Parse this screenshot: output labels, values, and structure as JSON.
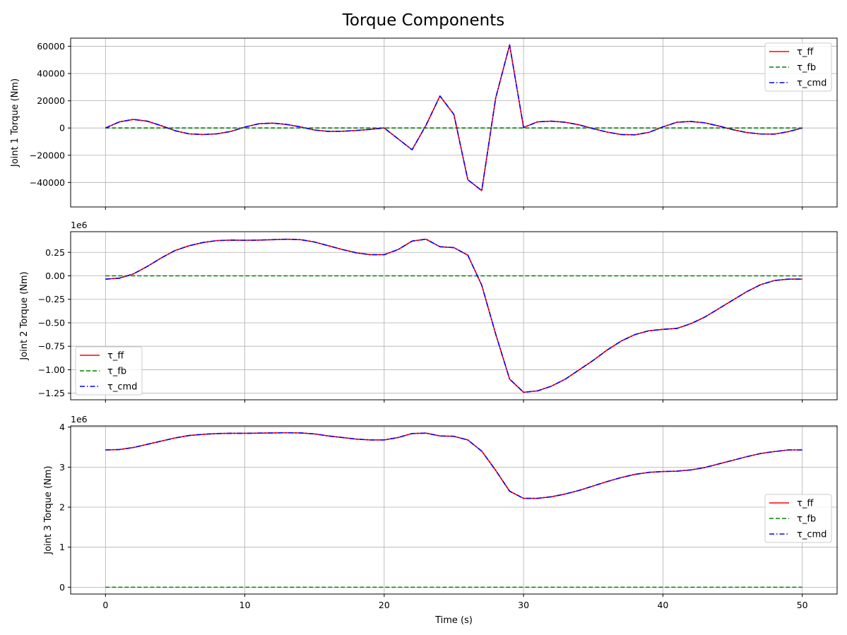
{
  "figure": {
    "title": "Torque Components"
  },
  "colors": {
    "tau_ff": "#ff0000",
    "tau_fb": "#008000",
    "tau_cmd": "#0000ff",
    "grid": "#b0b0b0"
  },
  "chart_data": [
    {
      "type": "line",
      "ylabel": "Joint 1 Torque (Nm)",
      "xlabel": "",
      "offset_text": "",
      "xlim": [
        -2.5,
        52.5
      ],
      "ylim": [
        -58000,
        66000
      ],
      "xticks": [
        0,
        10,
        20,
        30,
        40,
        50
      ],
      "yticks": [
        -40000,
        -20000,
        0,
        20000,
        40000,
        60000
      ],
      "ytick_labels": [
        "−40000",
        "−20000",
        "0",
        "20000",
        "40000",
        "60000"
      ],
      "grid": true,
      "legend_position": "upper right",
      "x": [
        0,
        1,
        2,
        3,
        4,
        5,
        6,
        7,
        8,
        9,
        10,
        11,
        12,
        13,
        14,
        15,
        16,
        17,
        18,
        19,
        20,
        21,
        22,
        23,
        24,
        25,
        26,
        27,
        28,
        29,
        30,
        31,
        32,
        33,
        34,
        35,
        36,
        37,
        38,
        39,
        40,
        41,
        42,
        43,
        44,
        45,
        46,
        47,
        48,
        49,
        50
      ],
      "series": [
        {
          "name": "τ_ff",
          "dash": "solid",
          "values": [
            0,
            4500,
            6300,
            5000,
            1700,
            -2000,
            -4300,
            -4800,
            -4300,
            -2500,
            700,
            3100,
            3600,
            2600,
            800,
            -1500,
            -2500,
            -2400,
            -1800,
            -1000,
            0,
            -8000,
            -16000,
            2000,
            23500,
            10000,
            -38000,
            -46000,
            22000,
            61000,
            400,
            4500,
            5000,
            4200,
            2300,
            -500,
            -3000,
            -4800,
            -5000,
            -3200,
            800,
            4200,
            4800,
            3800,
            1500,
            -1200,
            -3300,
            -4400,
            -4500,
            -2700,
            0
          ]
        },
        {
          "name": "τ_fb",
          "dash": "dashed",
          "values": [
            0,
            0,
            0,
            0,
            0,
            0,
            0,
            0,
            0,
            0,
            0,
            0,
            0,
            0,
            0,
            0,
            0,
            0,
            0,
            0,
            0,
            0,
            0,
            0,
            0,
            0,
            0,
            0,
            0,
            0,
            0,
            0,
            0,
            0,
            0,
            0,
            0,
            0,
            0,
            0,
            0,
            0,
            0,
            0,
            0,
            0,
            0,
            0,
            0,
            0,
            0
          ]
        },
        {
          "name": "τ_cmd",
          "dash": "dashdot",
          "values": [
            0,
            4500,
            6300,
            5000,
            1700,
            -2000,
            -4300,
            -4800,
            -4300,
            -2500,
            700,
            3100,
            3600,
            2600,
            800,
            -1500,
            -2500,
            -2400,
            -1800,
            -1000,
            0,
            -8000,
            -16000,
            2000,
            23500,
            10000,
            -38000,
            -46000,
            22000,
            61000,
            400,
            4500,
            5000,
            4200,
            2300,
            -500,
            -3000,
            -4800,
            -5000,
            -3200,
            800,
            4200,
            4800,
            3800,
            1500,
            -1200,
            -3300,
            -4400,
            -4500,
            -2700,
            0
          ]
        }
      ]
    },
    {
      "type": "line",
      "ylabel": "Joint 2 Torque (Nm)",
      "xlabel": "",
      "offset_text": "1e6",
      "xlim": [
        -2.5,
        52.5
      ],
      "ylim": [
        -1.32,
        0.47
      ],
      "xticks": [
        0,
        10,
        20,
        30,
        40,
        50
      ],
      "yticks": [
        -1.25,
        -1.0,
        -0.75,
        -0.5,
        -0.25,
        0.0,
        0.25
      ],
      "ytick_labels": [
        "−1.25",
        "−1.00",
        "−0.75",
        "−0.50",
        "−0.25",
        "0.00",
        "0.25"
      ],
      "grid": true,
      "legend_position": "lower left",
      "x": [
        0,
        1,
        2,
        3,
        4,
        5,
        6,
        7,
        8,
        9,
        10,
        11,
        12,
        13,
        14,
        15,
        16,
        17,
        18,
        19,
        20,
        21,
        22,
        23,
        24,
        25,
        26,
        27,
        28,
        29,
        30,
        31,
        32,
        33,
        34,
        35,
        36,
        37,
        38,
        39,
        40,
        41,
        42,
        43,
        44,
        45,
        46,
        47,
        48,
        49,
        50
      ],
      "series": [
        {
          "name": "τ_ff",
          "dash": "solid",
          "values": [
            -0.035,
            -0.025,
            0.02,
            0.1,
            0.19,
            0.27,
            0.32,
            0.355,
            0.375,
            0.38,
            0.378,
            0.38,
            0.385,
            0.39,
            0.385,
            0.36,
            0.32,
            0.28,
            0.245,
            0.225,
            0.225,
            0.28,
            0.37,
            0.39,
            0.31,
            0.3,
            0.22,
            -0.1,
            -0.62,
            -1.1,
            -1.24,
            -1.225,
            -1.175,
            -1.1,
            -1.0,
            -0.9,
            -0.79,
            -0.695,
            -0.625,
            -0.585,
            -0.57,
            -0.56,
            -0.51,
            -0.44,
            -0.35,
            -0.26,
            -0.17,
            -0.095,
            -0.05,
            -0.035,
            -0.035
          ]
        },
        {
          "name": "τ_fb",
          "dash": "dashed",
          "values": [
            0,
            0,
            0,
            0,
            0,
            0,
            0,
            0,
            0,
            0,
            0,
            0,
            0,
            0,
            0,
            0,
            0,
            0,
            0,
            0,
            0,
            0,
            0,
            0,
            0,
            0,
            0,
            0,
            0,
            0,
            0,
            0,
            0,
            0,
            0,
            0,
            0,
            0,
            0,
            0,
            0,
            0,
            0,
            0,
            0,
            0,
            0,
            0,
            0,
            0,
            0
          ]
        },
        {
          "name": "τ_cmd",
          "dash": "dashdot",
          "values": [
            -0.035,
            -0.025,
            0.02,
            0.1,
            0.19,
            0.27,
            0.32,
            0.355,
            0.375,
            0.38,
            0.378,
            0.38,
            0.385,
            0.39,
            0.385,
            0.36,
            0.32,
            0.28,
            0.245,
            0.225,
            0.225,
            0.28,
            0.37,
            0.39,
            0.31,
            0.3,
            0.22,
            -0.1,
            -0.62,
            -1.1,
            -1.24,
            -1.225,
            -1.175,
            -1.1,
            -1.0,
            -0.9,
            -0.79,
            -0.695,
            -0.625,
            -0.585,
            -0.57,
            -0.56,
            -0.51,
            -0.44,
            -0.35,
            -0.26,
            -0.17,
            -0.095,
            -0.05,
            -0.035,
            -0.035
          ]
        }
      ]
    },
    {
      "type": "line",
      "ylabel": "Joint 3 Torque (Nm)",
      "xlabel": "Time (s)",
      "offset_text": "1e6",
      "xlim": [
        -2.5,
        52.5
      ],
      "ylim": [
        -0.17,
        4.03
      ],
      "xticks": [
        0,
        10,
        20,
        30,
        40,
        50
      ],
      "yticks": [
        0,
        1,
        2,
        3,
        4
      ],
      "ytick_labels": [
        "0",
        "1",
        "2",
        "3",
        "4"
      ],
      "grid": true,
      "legend_position": "center right",
      "x": [
        0,
        1,
        2,
        3,
        4,
        5,
        6,
        7,
        8,
        9,
        10,
        11,
        12,
        13,
        14,
        15,
        16,
        17,
        18,
        19,
        20,
        21,
        22,
        23,
        24,
        25,
        26,
        27,
        28,
        29,
        30,
        31,
        32,
        33,
        34,
        35,
        36,
        37,
        38,
        39,
        40,
        41,
        42,
        43,
        44,
        45,
        46,
        47,
        48,
        49,
        50
      ],
      "series": [
        {
          "name": "τ_ff",
          "dash": "solid",
          "values": [
            3.43,
            3.44,
            3.49,
            3.57,
            3.65,
            3.73,
            3.79,
            3.82,
            3.84,
            3.845,
            3.845,
            3.85,
            3.855,
            3.86,
            3.855,
            3.83,
            3.78,
            3.74,
            3.7,
            3.68,
            3.68,
            3.74,
            3.84,
            3.85,
            3.78,
            3.77,
            3.68,
            3.4,
            2.92,
            2.4,
            2.22,
            2.22,
            2.26,
            2.33,
            2.42,
            2.53,
            2.64,
            2.74,
            2.82,
            2.87,
            2.89,
            2.9,
            2.93,
            2.99,
            3.08,
            3.17,
            3.26,
            3.34,
            3.39,
            3.43,
            3.43
          ]
        },
        {
          "name": "τ_fb",
          "dash": "dashed",
          "values": [
            0,
            0,
            0,
            0,
            0,
            0,
            0,
            0,
            0,
            0,
            0,
            0,
            0,
            0,
            0,
            0,
            0,
            0,
            0,
            0,
            0,
            0,
            0,
            0,
            0,
            0,
            0,
            0,
            0,
            0,
            0,
            0,
            0,
            0,
            0,
            0,
            0,
            0,
            0,
            0,
            0,
            0,
            0,
            0,
            0,
            0,
            0,
            0,
            0,
            0,
            0
          ]
        },
        {
          "name": "τ_cmd",
          "dash": "dashdot",
          "values": [
            3.43,
            3.44,
            3.49,
            3.57,
            3.65,
            3.73,
            3.79,
            3.82,
            3.84,
            3.845,
            3.845,
            3.85,
            3.855,
            3.86,
            3.855,
            3.83,
            3.78,
            3.74,
            3.7,
            3.68,
            3.68,
            3.74,
            3.84,
            3.85,
            3.78,
            3.77,
            3.68,
            3.4,
            2.92,
            2.4,
            2.22,
            2.22,
            2.26,
            2.33,
            2.42,
            2.53,
            2.64,
            2.74,
            2.82,
            2.87,
            2.89,
            2.9,
            2.93,
            2.99,
            3.08,
            3.17,
            3.26,
            3.34,
            3.39,
            3.43,
            3.43
          ]
        }
      ]
    }
  ]
}
